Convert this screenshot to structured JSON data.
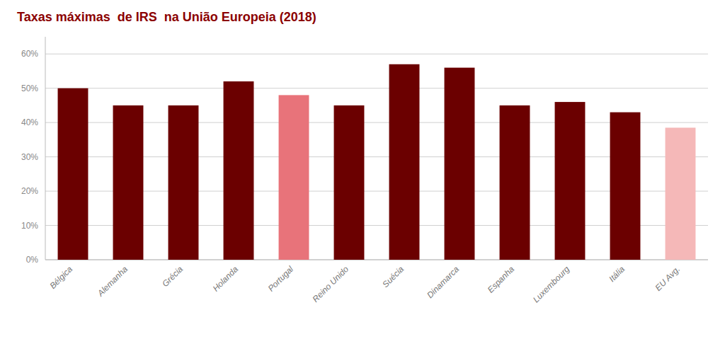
{
  "chart_data": {
    "type": "bar",
    "title": "Taxas máximas  de IRS  na União Europeia (2018)",
    "categories": [
      "Bélgica",
      "Alemanha",
      "Grécia",
      "Holanda",
      "Portugal",
      "Reino Unido",
      "Suécia",
      "Dinamarca",
      "Espanha",
      "Luxembourg",
      "Itália",
      "EU Avg."
    ],
    "values": [
      50,
      45,
      45,
      52,
      48,
      45,
      57,
      56,
      45,
      46,
      43,
      38.5
    ],
    "colors": [
      "#6B0000",
      "#6B0000",
      "#6B0000",
      "#6B0000",
      "#E8737A",
      "#6B0000",
      "#6B0000",
      "#6B0000",
      "#6B0000",
      "#6B0000",
      "#6B0000",
      "#F5B8B8"
    ],
    "ylim": [
      0,
      65
    ],
    "yticks": [
      {
        "value": 0,
        "label": "0%"
      },
      {
        "value": 10,
        "label": "10%"
      },
      {
        "value": 20,
        "label": "20%"
      },
      {
        "value": 30,
        "label": "30%"
      },
      {
        "value": 40,
        "label": "40%"
      },
      {
        "value": 50,
        "label": "50%"
      },
      {
        "value": 60,
        "label": "60%"
      }
    ],
    "grid": true
  }
}
